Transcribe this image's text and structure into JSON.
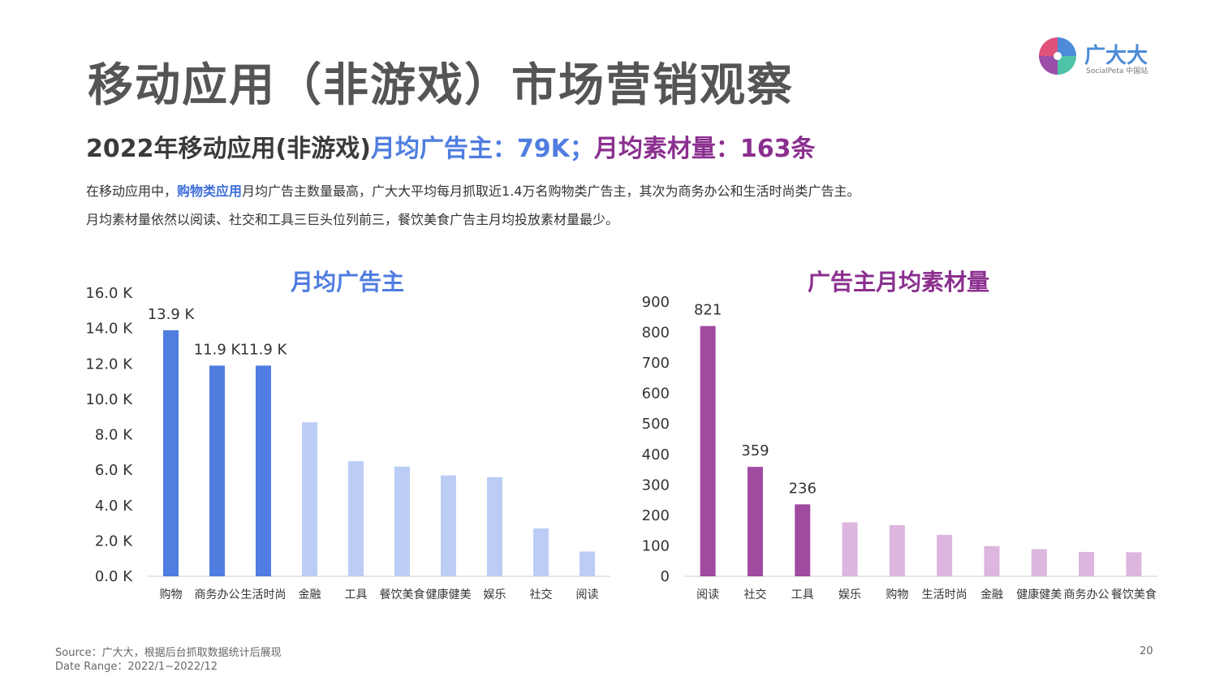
{
  "page": {
    "title": "移动应用（非游戏）市场营销观察",
    "subtitle_part1": "2022年移动应用(非游戏)",
    "subtitle_part2": "月均广告主：79K；",
    "subtitle_part3": "月均素材量：163条",
    "desc_line1_pre": "在移动应用中，",
    "desc_line1_highlight": "购物类应用",
    "desc_line1_post": "月均广告主数量最高，广大大平均每月抓取近1.4万名购物类广告主，其次为商务办公和生活时尚类广告主。",
    "desc_line2": "月均素材量依然以阅读、社交和工具三巨头位列前三，餐饮美食广告主月均投放素材量最少。",
    "source": "Source：广大大，根据后台抓取数据统计后展现",
    "date_range": "Date Range：2022/1~2022/12",
    "page_number": "20"
  },
  "logo": {
    "name": "广大大",
    "sub": "SocialPeta 中国站"
  },
  "colors": {
    "blue_dark": "#4f7de0",
    "blue_light": "#bccdf5",
    "purple_dark": "#a04aa0",
    "purple_light": "#dcb6de"
  },
  "chart_data": [
    {
      "type": "bar",
      "title": "月均广告主",
      "categories": [
        "购物",
        "商务办公",
        "生活时尚",
        "金融",
        "工具",
        "餐饮美食",
        "健康健美",
        "娱乐",
        "社交",
        "阅读"
      ],
      "values": [
        13.9,
        11.9,
        11.9,
        8.7,
        6.5,
        6.2,
        5.7,
        5.6,
        2.7,
        1.4
      ],
      "unit": "K",
      "ylim": [
        0,
        16
      ],
      "yticks": [
        "0.0 K",
        "2.0 K",
        "4.0 K",
        "6.0 K",
        "8.0 K",
        "10.0 K",
        "12.0 K",
        "14.0 K",
        "16.0 K"
      ],
      "data_labels": [
        "13.9 K",
        "11.9 K",
        "11.9 K",
        "",
        "",
        "",
        "",
        "",
        "",
        ""
      ],
      "highlight_count": 3
    },
    {
      "type": "bar",
      "title": "广告主月均素材量",
      "categories": [
        "阅读",
        "社交",
        "工具",
        "娱乐",
        "购物",
        "生活时尚",
        "金融",
        "健康健美",
        "商务办公",
        "餐饮美食"
      ],
      "values": [
        821,
        359,
        236,
        177,
        168,
        136,
        99,
        89,
        80,
        79
      ],
      "ylim": [
        0,
        900
      ],
      "yticks": [
        "0",
        "100",
        "200",
        "300",
        "400",
        "500",
        "600",
        "700",
        "800",
        "900"
      ],
      "data_labels": [
        "821",
        "359",
        "236",
        "",
        "",
        "",
        "",
        "",
        "",
        ""
      ],
      "highlight_count": 3
    }
  ]
}
